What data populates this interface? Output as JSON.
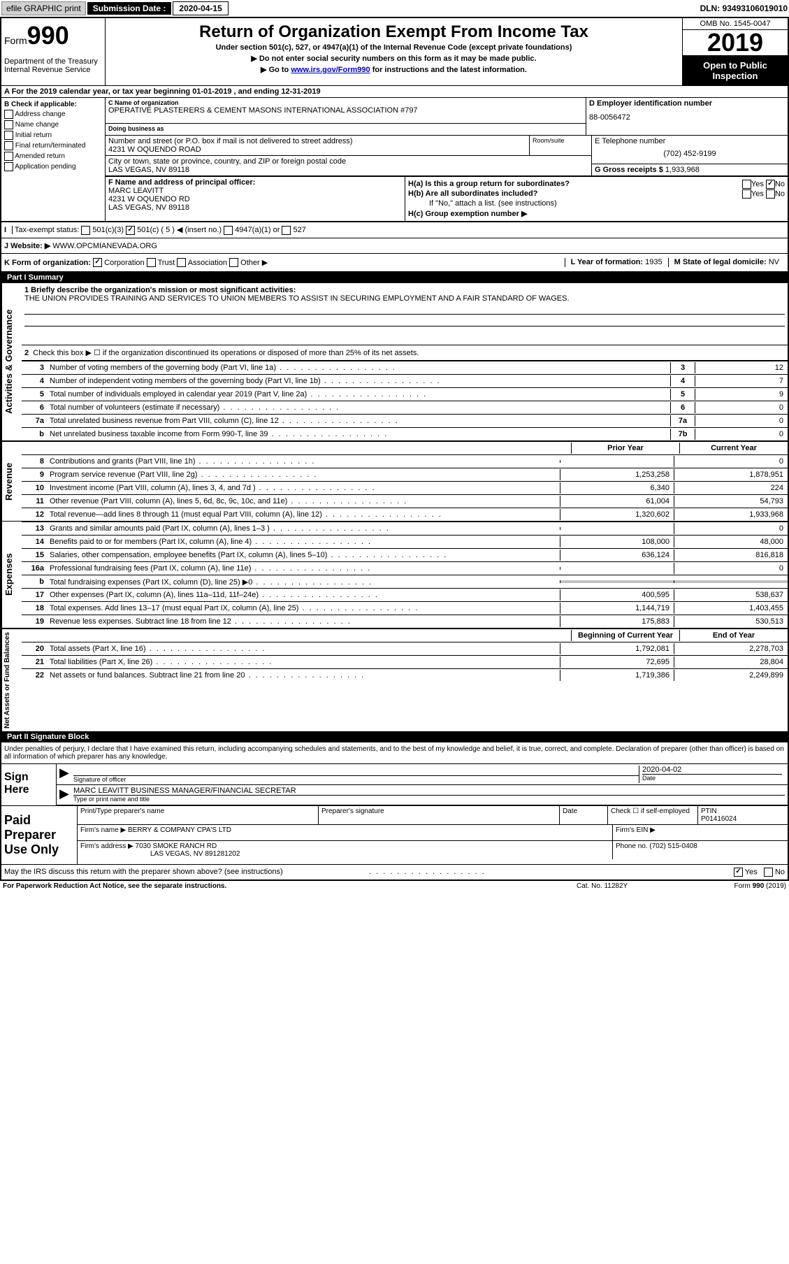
{
  "topbar": {
    "efile": "efile GRAPHIC print",
    "sub_label": "Submission Date :",
    "sub_date": "2020-04-15",
    "dln": "DLN: 93493106019010"
  },
  "header": {
    "form_label": "Form",
    "form_num": "990",
    "title": "Return of Organization Exempt From Income Tax",
    "subtitle": "Under section 501(c), 527, or 4947(a)(1) of the Internal Revenue Code (except private foundations)",
    "line1": "▶ Do not enter social security numbers on this form as it may be made public.",
    "line2_pre": "▶ Go to ",
    "line2_link": "www.irs.gov/Form990",
    "line2_post": " for instructions and the latest information.",
    "dept": "Department of the Treasury\nInternal Revenue Service",
    "omb": "OMB No. 1545-0047",
    "year": "2019",
    "open": "Open to Public Inspection"
  },
  "row_a": "A For the 2019 calendar year, or tax year beginning 01-01-2019    , and ending 12-31-2019",
  "col_b": {
    "label": "B Check if applicable:",
    "items": [
      "Address change",
      "Name change",
      "Initial return",
      "Final return/terminated",
      "Amended return",
      "Application pending"
    ]
  },
  "org": {
    "name_label": "C Name of organization",
    "name": "OPERATIVE PLASTERERS & CEMENT MASONS INTERNATIONAL ASSOCIATION #797",
    "dba_label": "Doing business as",
    "addr_label": "Number and street (or P.O. box if mail is not delivered to street address)",
    "room_label": "Room/suite",
    "addr": "4231 W OQUENDO ROAD",
    "city_label": "City or town, state or province, country, and ZIP or foreign postal code",
    "city": "LAS VEGAS, NV  89118"
  },
  "ein": {
    "label": "D Employer identification number",
    "value": "88-0056472"
  },
  "phone": {
    "label": "E Telephone number",
    "value": "(702) 452-9199"
  },
  "receipts": {
    "label": "G Gross receipts $",
    "value": "1,933,968"
  },
  "officer": {
    "label": "F  Name and address of principal officer:",
    "name": "MARC LEAVITT",
    "addr": "4231 W OQUENDO RD",
    "city": "LAS VEGAS, NV  89118"
  },
  "h": {
    "a": "H(a)  Is this a group return for subordinates?",
    "a_yes": "Yes",
    "a_no": "No",
    "b": "H(b)  Are all subordinates included?",
    "b_yes": "Yes",
    "b_no": "No",
    "b_note": "If \"No,\" attach a list. (see instructions)",
    "c": "H(c)  Group exemption number ▶"
  },
  "tax_status": {
    "label": "Tax-exempt status:",
    "opt1": "501(c)(3)",
    "opt2": "501(c) ( 5 ) ◀ (insert no.)",
    "opt3": "4947(a)(1) or",
    "opt4": "527"
  },
  "website": {
    "label": "J   Website: ▶",
    "value": "WWW.OPCMIANEVADA.ORG"
  },
  "k": {
    "label": "K Form of organization:",
    "opts": [
      "Corporation",
      "Trust",
      "Association",
      "Other ▶"
    ]
  },
  "l": {
    "label": "L Year of formation:",
    "value": "1935"
  },
  "m": {
    "label": "M State of legal domicile:",
    "value": "NV"
  },
  "part1": {
    "header": "Part I      Summary",
    "side_gov": "Activities & Governance",
    "side_rev": "Revenue",
    "side_exp": "Expenses",
    "side_net": "Net Assets or Fund Balances",
    "line1_label": "1  Briefly describe the organization's mission or most significant activities:",
    "line1_text": "THE UNION PROVIDES TRAINING AND SERVICES TO UNION MEMBERS TO ASSIST IN SECURING EMPLOYMENT AND A FAIR STANDARD OF WAGES.",
    "line2": "Check this box ▶ ☐  if the organization discontinued its operations or disposed of more than 25% of its net assets.",
    "lines_gov": [
      {
        "num": "3",
        "desc": "Number of voting members of the governing body (Part VI, line 1a)",
        "box": "3",
        "val": "12"
      },
      {
        "num": "4",
        "desc": "Number of independent voting members of the governing body (Part VI, line 1b)",
        "box": "4",
        "val": "7"
      },
      {
        "num": "5",
        "desc": "Total number of individuals employed in calendar year 2019 (Part V, line 2a)",
        "box": "5",
        "val": "9"
      },
      {
        "num": "6",
        "desc": "Total number of volunteers (estimate if necessary)",
        "box": "6",
        "val": "0"
      },
      {
        "num": "7a",
        "desc": "Total unrelated business revenue from Part VIII, column (C), line 12",
        "box": "7a",
        "val": "0"
      },
      {
        "num": "b",
        "desc": "Net unrelated business taxable income from Form 990-T, line 39",
        "box": "7b",
        "val": "0"
      }
    ],
    "col_prior": "Prior Year",
    "col_current": "Current Year",
    "lines_rev": [
      {
        "num": "8",
        "desc": "Contributions and grants (Part VIII, line 1h)",
        "prior": "",
        "curr": "0"
      },
      {
        "num": "9",
        "desc": "Program service revenue (Part VIII, line 2g)",
        "prior": "1,253,258",
        "curr": "1,878,951"
      },
      {
        "num": "10",
        "desc": "Investment income (Part VIII, column (A), lines 3, 4, and 7d )",
        "prior": "6,340",
        "curr": "224"
      },
      {
        "num": "11",
        "desc": "Other revenue (Part VIII, column (A), lines 5, 6d, 8c, 9c, 10c, and 11e)",
        "prior": "61,004",
        "curr": "54,793"
      },
      {
        "num": "12",
        "desc": "Total revenue—add lines 8 through 11 (must equal Part VIII, column (A), line 12)",
        "prior": "1,320,602",
        "curr": "1,933,968"
      }
    ],
    "lines_exp": [
      {
        "num": "13",
        "desc": "Grants and similar amounts paid (Part IX, column (A), lines 1–3 )",
        "prior": "",
        "curr": "0"
      },
      {
        "num": "14",
        "desc": "Benefits paid to or for members (Part IX, column (A), line 4)",
        "prior": "108,000",
        "curr": "48,000"
      },
      {
        "num": "15",
        "desc": "Salaries, other compensation, employee benefits (Part IX, column (A), lines 5–10)",
        "prior": "636,124",
        "curr": "816,818"
      },
      {
        "num": "16a",
        "desc": "Professional fundraising fees (Part IX, column (A), line 11e)",
        "prior": "",
        "curr": "0"
      },
      {
        "num": "b",
        "desc": "Total fundraising expenses (Part IX, column (D), line 25) ▶0",
        "prior": "shaded",
        "curr": "shaded"
      },
      {
        "num": "17",
        "desc": "Other expenses (Part IX, column (A), lines 11a–11d, 11f–24e)",
        "prior": "400,595",
        "curr": "538,637"
      },
      {
        "num": "18",
        "desc": "Total expenses. Add lines 13–17 (must equal Part IX, column (A), line 25)",
        "prior": "1,144,719",
        "curr": "1,403,455"
      },
      {
        "num": "19",
        "desc": "Revenue less expenses. Subtract line 18 from line 12",
        "prior": "175,883",
        "curr": "530,513"
      }
    ],
    "col_begin": "Beginning of Current Year",
    "col_end": "End of Year",
    "lines_net": [
      {
        "num": "20",
        "desc": "Total assets (Part X, line 16)",
        "prior": "1,792,081",
        "curr": "2,278,703"
      },
      {
        "num": "21",
        "desc": "Total liabilities (Part X, line 26)",
        "prior": "72,695",
        "curr": "28,804"
      },
      {
        "num": "22",
        "desc": "Net assets or fund balances. Subtract line 21 from line 20",
        "prior": "1,719,386",
        "curr": "2,249,899"
      }
    ]
  },
  "part2": {
    "header": "Part II     Signature Block",
    "intro": "Under penalties of perjury, I declare that I have examined this return, including accompanying schedules and statements, and to the best of my knowledge and belief, it is true, correct, and complete. Declaration of preparer (other than officer) is based on all information of which preparer has any knowledge.",
    "sign_here": "Sign Here",
    "sig_officer": "Signature of officer",
    "date_label": "Date",
    "date_val": "2020-04-02",
    "name_title": "MARC LEAVITT BUSINESS MANAGER/FINANCIAL SECRETAR",
    "name_title_label": "Type or print name and title",
    "paid_prep": "Paid Preparer Use Only",
    "prep_name_label": "Print/Type preparer's name",
    "prep_sig_label": "Preparer's signature",
    "prep_date_label": "Date",
    "check_label": "Check ☐ if self-employed",
    "ptin_label": "PTIN",
    "ptin": "P01416024",
    "firm_name_label": "Firm's name     ▶",
    "firm_name": "BERRY & COMPANY CPA'S LTD",
    "firm_ein_label": "Firm's EIN ▶",
    "firm_addr_label": "Firm's address ▶",
    "firm_addr": "7030 SMOKE RANCH RD",
    "firm_city": "LAS VEGAS, NV  891281202",
    "firm_phone_label": "Phone no.",
    "firm_phone": "(702) 515-0408",
    "discuss": "May the IRS discuss this return with the preparer shown above? (see instructions)",
    "yes": "Yes",
    "no": "No"
  },
  "footer": {
    "left": "For Paperwork Reduction Act Notice, see the separate instructions.",
    "mid": "Cat. No. 11282Y",
    "right": "Form 990 (2019)"
  }
}
